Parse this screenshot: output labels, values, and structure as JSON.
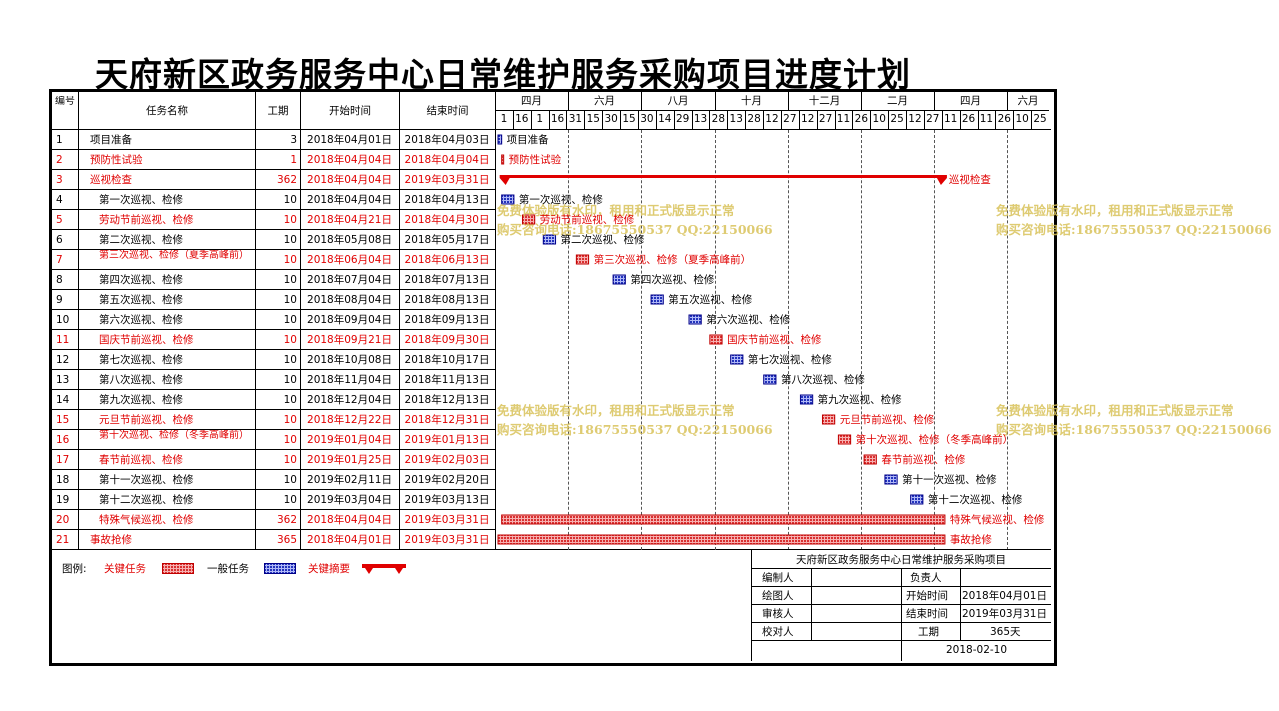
{
  "title": "天府新区政务服务中心日常维护服务采购项目进度计划",
  "colors": {
    "critical_text": "#e00000",
    "critical_bar": "#e06060",
    "normal_bar": "#3344cc",
    "summary_bar": "#e00000"
  },
  "table_headers": {
    "num": "编号",
    "name": "任务名称",
    "dur": "工期",
    "start": "开始时间",
    "end": "结束时间"
  },
  "timeline": {
    "months": [
      "四月",
      "六月",
      "八月",
      "十月",
      "十二月",
      "二月",
      "四月",
      "六月"
    ],
    "days": [
      "1",
      "16",
      "1",
      "16",
      "31",
      "15",
      "30",
      "15",
      "30",
      "14",
      "29",
      "13",
      "28",
      "13",
      "28",
      "12",
      "27",
      "12",
      "27",
      "11",
      "26",
      "10",
      "25",
      "12",
      "27",
      "11",
      "26",
      "11",
      "26",
      "10",
      "25"
    ]
  },
  "tasks": [
    {
      "id": "1",
      "name": "项目准备",
      "dur": "3",
      "start": "2018年04月01日",
      "end": "2018年04月03日",
      "type": "normal",
      "indent": false
    },
    {
      "id": "2",
      "name": "预防性试验",
      "dur": "1",
      "start": "2018年04月04日",
      "end": "2018年04月04日",
      "type": "critical",
      "indent": false
    },
    {
      "id": "3",
      "name": "巡视检查",
      "dur": "362",
      "start": "2018年04月04日",
      "end": "2019年03月31日",
      "type": "summary",
      "indent": false
    },
    {
      "id": "4",
      "name": "第一次巡视、检修",
      "dur": "10",
      "start": "2018年04月04日",
      "end": "2018年04月13日",
      "type": "normal",
      "indent": true
    },
    {
      "id": "5",
      "name": "劳动节前巡视、检修",
      "dur": "10",
      "start": "2018年04月21日",
      "end": "2018年04月30日",
      "type": "critical",
      "indent": true
    },
    {
      "id": "6",
      "name": "第二次巡视、检修",
      "dur": "10",
      "start": "2018年05月08日",
      "end": "2018年05月17日",
      "type": "normal",
      "indent": true
    },
    {
      "id": "7",
      "name": "第三次巡视、检修（夏季高峰前）",
      "dur": "10",
      "start": "2018年06月04日",
      "end": "2018年06月13日",
      "type": "critical",
      "indent": true
    },
    {
      "id": "8",
      "name": "第四次巡视、检修",
      "dur": "10",
      "start": "2018年07月04日",
      "end": "2018年07月13日",
      "type": "normal",
      "indent": true
    },
    {
      "id": "9",
      "name": "第五次巡视、检修",
      "dur": "10",
      "start": "2018年08月04日",
      "end": "2018年08月13日",
      "type": "normal",
      "indent": true
    },
    {
      "id": "10",
      "name": "第六次巡视、检修",
      "dur": "10",
      "start": "2018年09月04日",
      "end": "2018年09月13日",
      "type": "normal",
      "indent": true
    },
    {
      "id": "11",
      "name": "国庆节前巡视、检修",
      "dur": "10",
      "start": "2018年09月21日",
      "end": "2018年09月30日",
      "type": "critical",
      "indent": true
    },
    {
      "id": "12",
      "name": "第七次巡视、检修",
      "dur": "10",
      "start": "2018年10月08日",
      "end": "2018年10月17日",
      "type": "normal",
      "indent": true
    },
    {
      "id": "13",
      "name": "第八次巡视、检修",
      "dur": "10",
      "start": "2018年11月04日",
      "end": "2018年11月13日",
      "type": "normal",
      "indent": true
    },
    {
      "id": "14",
      "name": "第九次巡视、检修",
      "dur": "10",
      "start": "2018年12月04日",
      "end": "2018年12月13日",
      "type": "normal",
      "indent": true
    },
    {
      "id": "15",
      "name": "元旦节前巡视、检修",
      "dur": "10",
      "start": "2018年12月22日",
      "end": "2018年12月31日",
      "type": "critical",
      "indent": true
    },
    {
      "id": "16",
      "name": "第十次巡视、检修（冬季高峰前）",
      "dur": "10",
      "start": "2019年01月04日",
      "end": "2019年01月13日",
      "type": "critical",
      "indent": true
    },
    {
      "id": "17",
      "name": "春节前巡视、检修",
      "dur": "10",
      "start": "2019年01月25日",
      "end": "2019年02月03日",
      "type": "critical",
      "indent": true
    },
    {
      "id": "18",
      "name": "第十一次巡视、检修",
      "dur": "10",
      "start": "2019年02月11日",
      "end": "2019年02月20日",
      "type": "normal",
      "indent": true
    },
    {
      "id": "19",
      "name": "第十二次巡视、检修",
      "dur": "10",
      "start": "2019年03月04日",
      "end": "2019年03月13日",
      "type": "normal",
      "indent": true
    },
    {
      "id": "20",
      "name": "特殊气候巡视、检修",
      "dur": "362",
      "start": "2018年04月04日",
      "end": "2019年03月31日",
      "type": "critical",
      "indent": true
    },
    {
      "id": "21",
      "name": "事故抢修",
      "dur": "365",
      "start": "2018年04月01日",
      "end": "2019年03月31日",
      "type": "critical",
      "indent": false
    }
  ],
  "chart_data": {
    "type": "gantt",
    "title": "天府新区政务服务中心日常维护服务采购项目进度计划",
    "time_range": [
      "2018-04-01",
      "2019-06-25"
    ],
    "series": [
      {
        "name": "关键任务",
        "type": "critical"
      },
      {
        "name": "一般任务",
        "type": "normal"
      },
      {
        "name": "关键摘要",
        "type": "summary"
      }
    ]
  },
  "legend": {
    "label": "图例:",
    "critical": "关键任务",
    "normal": "一般任务",
    "summary": "关键摘要"
  },
  "watermark": {
    "line1": "免费体验版有水印，租用和正式版显示正常",
    "line2": "购买咨询电话:18675550537 QQ:22150066"
  },
  "summary_box": {
    "project": "天府新区政务服务中心日常维护服务采购项目",
    "editor_label": "编制人",
    "owner_label": "负责人",
    "drawer_label": "绘图人",
    "start_label": "开始时间",
    "start_value": "2018年04月01日",
    "reviewer_label": "审核人",
    "end_label": "结束时间",
    "end_value": "2019年03月31日",
    "checker_label": "校对人",
    "dur_label": "工期",
    "dur_value": "365天",
    "date": "2018-02-10"
  }
}
